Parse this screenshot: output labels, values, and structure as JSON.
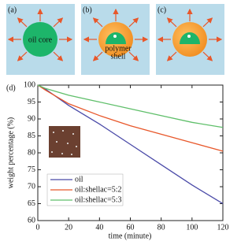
{
  "panels": {
    "a": {
      "label": "(a)",
      "text": "oil core"
    },
    "b": {
      "label": "(b)",
      "lines": [
        "polymer",
        "shell"
      ]
    },
    "c": {
      "label": "(c)"
    }
  },
  "chart_data": {
    "type": "line",
    "label": "(d)",
    "x_label": "time (minute)",
    "y_label": "weight percentage (%)",
    "x": [
      0,
      5,
      20,
      40,
      60,
      80,
      100,
      120
    ],
    "series": [
      {
        "name": "oil",
        "color": "#4a4aa8",
        "values": [
          100,
          98.8,
          94,
          88.5,
          82.5,
          76.5,
          70.5,
          65
        ]
      },
      {
        "name": "oil:shellac=5:2",
        "color": "#e8572a",
        "values": [
          100,
          98.5,
          94.5,
          91,
          88,
          85.5,
          83,
          80.5
        ]
      },
      {
        "name": "oil:shellac=5:3",
        "color": "#5fbf6a",
        "values": [
          100,
          99,
          97,
          95,
          93,
          91,
          89,
          87.5
        ]
      }
    ],
    "xlim": [
      0,
      120
    ],
    "ylim": [
      60,
      100
    ],
    "xticks": [
      0,
      20,
      40,
      60,
      80,
      100,
      120
    ],
    "yticks": [
      60,
      65,
      70,
      75,
      80,
      85,
      90,
      95,
      100
    ],
    "legend": "lower left"
  }
}
